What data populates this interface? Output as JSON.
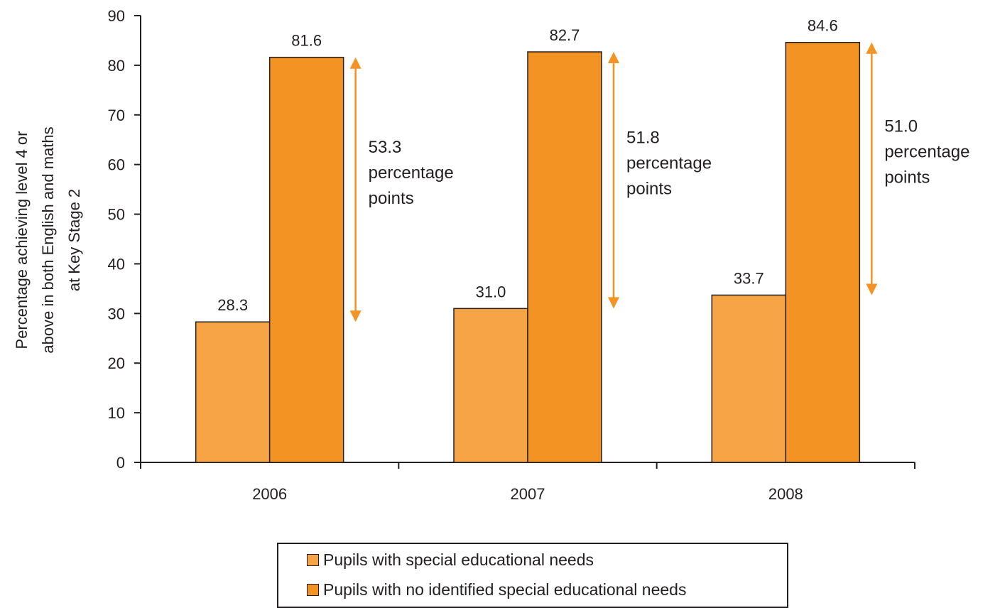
{
  "chart_data": {
    "type": "bar",
    "categories": [
      "2006",
      "2007",
      "2008"
    ],
    "series": [
      {
        "name": "Pupils with special educational needs",
        "values": [
          28.3,
          31.0,
          33.7
        ],
        "color": "#f7a446",
        "labels": [
          "28.3",
          "31.0",
          "33.7"
        ]
      },
      {
        "name": "Pupils with no identified special educational needs",
        "values": [
          81.6,
          82.7,
          84.6
        ],
        "color": "#f39324",
        "labels": [
          "81.6",
          "82.7",
          "84.6"
        ]
      }
    ],
    "ylabel": "Percentage achieving level 4 or above in both English and maths at Key Stage 2",
    "ylabel_lines": [
      "Percentage achieving level 4 or",
      "above in both English and maths",
      "at Key Stage 2"
    ],
    "ylim": [
      0,
      90
    ],
    "yticks": [
      0,
      10,
      20,
      30,
      40,
      50,
      60,
      70,
      80,
      90
    ],
    "ytick_labels": [
      "0",
      "10",
      "20",
      "30",
      "40",
      "50",
      "60",
      "70",
      "80",
      "90"
    ],
    "gaps": [
      {
        "value": "53.3",
        "lines": [
          "53.3",
          "percentage",
          "points"
        ]
      },
      {
        "value": "51.8",
        "lines": [
          "51.8",
          "percentage",
          "points"
        ]
      },
      {
        "value": "51.0",
        "lines": [
          "51.0",
          "percentage",
          "points"
        ]
      }
    ],
    "arrow_color": "#f39324",
    "grid": false,
    "legend_position": "bottom"
  }
}
